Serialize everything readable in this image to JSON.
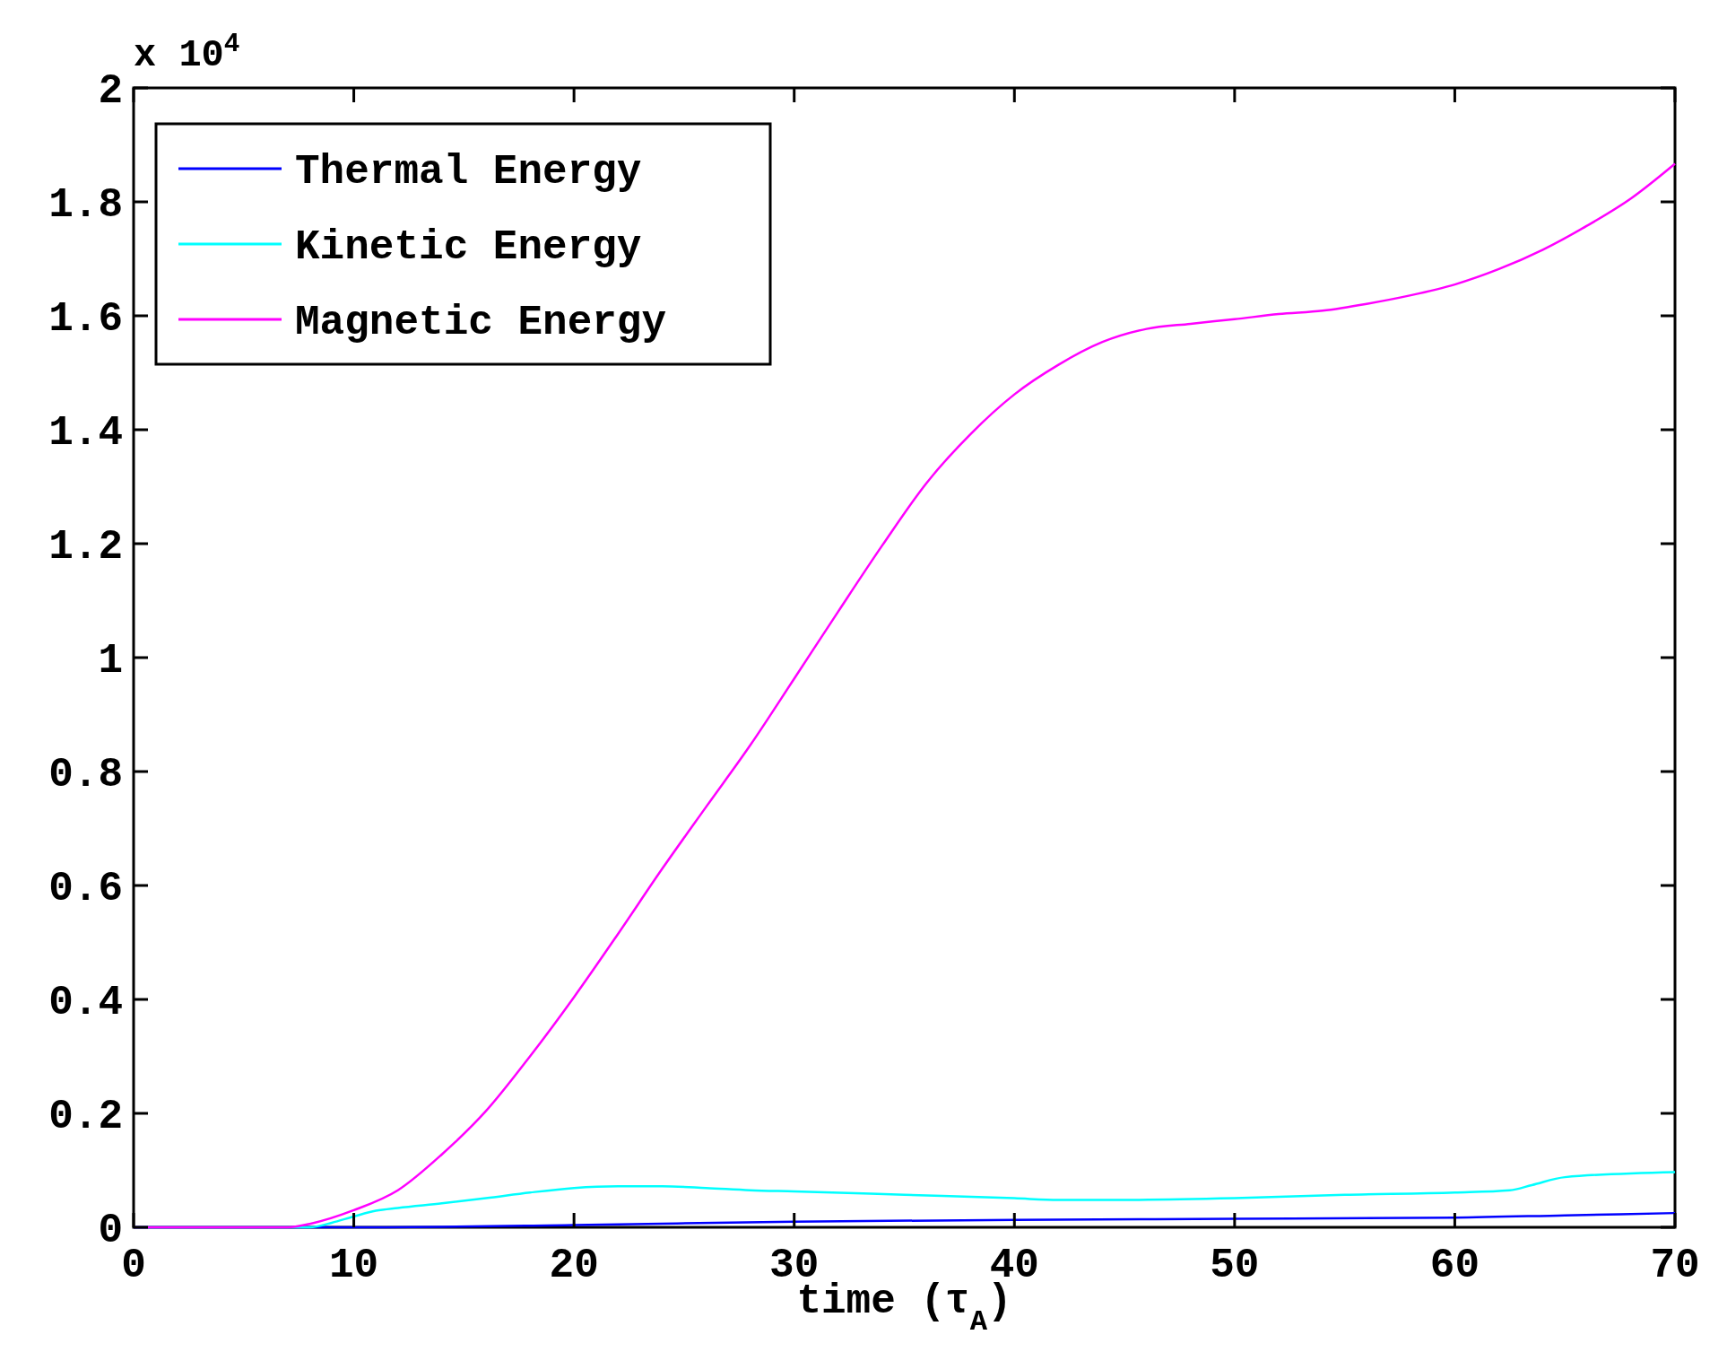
{
  "chart_data": {
    "type": "line",
    "xlabel": "time (τ$_{A}$)",
    "annotations": [
      "x 10$^{4}$"
    ],
    "xlim": [
      0,
      70
    ],
    "xticks": [
      0,
      10,
      20,
      30,
      40,
      50,
      60,
      70
    ],
    "ylim": [
      0,
      2
    ],
    "yticks": [
      0,
      0.2,
      0.4,
      0.6,
      0.8,
      1,
      1.2,
      1.4,
      1.6,
      1.8,
      2
    ],
    "grid": false,
    "legend": "top left",
    "series": [
      {
        "name": "Thermal Energy",
        "color": "#0000ff",
        "x": [
          0,
          10,
          20,
          30,
          40,
          50,
          60,
          65,
          70
        ],
        "values": [
          0,
          0,
          0.004,
          0.01,
          0.013,
          0.015,
          0.017,
          0.021,
          0.025
        ]
      },
      {
        "name": "Kinetic Energy",
        "color": "#00ffff",
        "x": [
          0,
          8,
          9,
          10,
          11,
          12,
          14,
          16,
          18,
          20,
          22,
          24,
          26,
          28,
          30,
          35,
          40,
          42,
          45,
          50,
          55,
          60,
          62.5,
          63.5,
          65,
          70
        ],
        "values": [
          0,
          0,
          0.008,
          0.019,
          0.029,
          0.034,
          0.042,
          0.051,
          0.061,
          0.069,
          0.072,
          0.072,
          0.069,
          0.065,
          0.063,
          0.057,
          0.051,
          0.048,
          0.048,
          0.051,
          0.057,
          0.061,
          0.065,
          0.074,
          0.088,
          0.097
        ]
      },
      {
        "name": "Magnetic Energy",
        "color": "#ff00ff",
        "x": [
          0,
          7,
          8,
          10,
          12,
          14,
          16,
          18,
          20,
          22,
          24,
          26,
          28,
          30,
          32,
          34,
          36,
          38,
          40,
          42,
          44,
          46,
          48,
          50,
          52,
          54,
          56,
          58,
          60,
          62,
          64,
          66,
          68,
          70
        ],
        "values": [
          0,
          0,
          0.006,
          0.03,
          0.065,
          0.128,
          0.204,
          0.3,
          0.404,
          0.515,
          0.629,
          0.738,
          0.846,
          0.963,
          1.081,
          1.197,
          1.306,
          1.392,
          1.462,
          1.514,
          1.554,
          1.577,
          1.586,
          1.594,
          1.603,
          1.609,
          1.621,
          1.636,
          1.655,
          1.682,
          1.716,
          1.758,
          1.806,
          1.867
        ]
      }
    ]
  }
}
